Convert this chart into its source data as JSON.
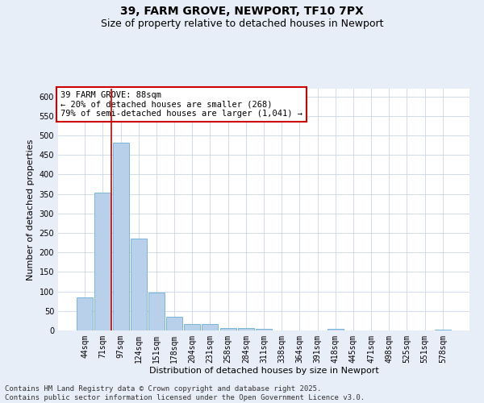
{
  "title": "39, FARM GROVE, NEWPORT, TF10 7PX",
  "subtitle": "Size of property relative to detached houses in Newport",
  "xlabel": "Distribution of detached houses by size in Newport",
  "ylabel": "Number of detached properties",
  "categories": [
    "44sqm",
    "71sqm",
    "97sqm",
    "124sqm",
    "151sqm",
    "178sqm",
    "204sqm",
    "231sqm",
    "258sqm",
    "284sqm",
    "311sqm",
    "338sqm",
    "364sqm",
    "391sqm",
    "418sqm",
    "445sqm",
    "471sqm",
    "498sqm",
    "525sqm",
    "551sqm",
    "578sqm"
  ],
  "values": [
    85,
    353,
    481,
    235,
    97,
    36,
    17,
    17,
    7,
    6,
    4,
    0,
    0,
    0,
    4,
    0,
    0,
    0,
    0,
    0,
    3
  ],
  "bar_color": "#b8d0ea",
  "bar_edge_color": "#6aaed6",
  "vline_color": "#cc0000",
  "vline_x_index": 1.5,
  "annotation_text": "39 FARM GROVE: 88sqm\n← 20% of detached houses are smaller (268)\n79% of semi-detached houses are larger (1,041) →",
  "annotation_box_color": "#cc0000",
  "ylim": [
    0,
    620
  ],
  "yticks": [
    0,
    50,
    100,
    150,
    200,
    250,
    300,
    350,
    400,
    450,
    500,
    550,
    600
  ],
  "footer_text": "Contains HM Land Registry data © Crown copyright and database right 2025.\nContains public sector information licensed under the Open Government Licence v3.0.",
  "background_color": "#e8eef7",
  "plot_bg_color": "#ffffff",
  "grid_color": "#c0cfe0",
  "title_fontsize": 10,
  "subtitle_fontsize": 9,
  "axis_label_fontsize": 8,
  "tick_fontsize": 7,
  "annotation_fontsize": 7.5,
  "footer_fontsize": 6.5
}
